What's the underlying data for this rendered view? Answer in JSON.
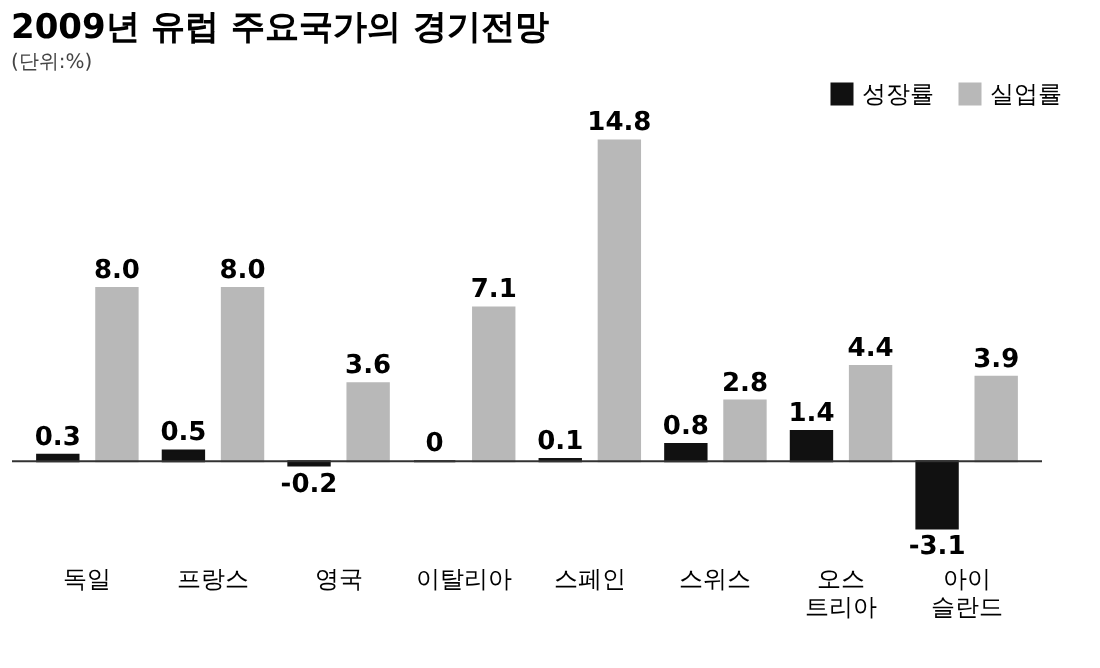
{
  "chart_data": {
    "type": "bar",
    "title": "2009년 유럽 주요국가의 경기전망",
    "subtitle": "(단위:%)",
    "categories": [
      "독일",
      "프랑스",
      "영국",
      "이탈리아",
      "스페인",
      "스위스",
      "오스\n트리아",
      "아이\n슬란드"
    ],
    "series": [
      {
        "name": "성장률",
        "color": "#111111",
        "values": [
          0.3,
          0.5,
          -0.2,
          0,
          0.1,
          0.8,
          1.4,
          -3.1
        ],
        "value_labels": [
          "0.3",
          "0.5",
          "-0.2",
          "0",
          "0.1",
          "0.8",
          "1.4",
          "-3.1"
        ]
      },
      {
        "name": "실업률",
        "color": "#b8b8b8",
        "values": [
          8.0,
          8.0,
          3.6,
          7.1,
          14.8,
          2.8,
          4.4,
          3.9
        ],
        "value_labels": [
          "8.0",
          "8.0",
          "3.6",
          "7.1",
          "14.8",
          "2.8",
          "4.4",
          "3.9"
        ]
      }
    ],
    "legend": "top right",
    "grid": false
  }
}
